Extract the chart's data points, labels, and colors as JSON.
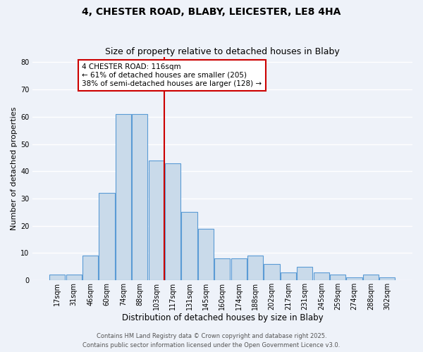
{
  "title1": "4, CHESTER ROAD, BLABY, LEICESTER, LE8 4HA",
  "title2": "Size of property relative to detached houses in Blaby",
  "xlabel": "Distribution of detached houses by size in Blaby",
  "ylabel": "Number of detached properties",
  "bar_labels": [
    "17sqm",
    "31sqm",
    "46sqm",
    "60sqm",
    "74sqm",
    "88sqm",
    "103sqm",
    "117sqm",
    "131sqm",
    "145sqm",
    "160sqm",
    "174sqm",
    "188sqm",
    "202sqm",
    "217sqm",
    "231sqm",
    "245sqm",
    "259sqm",
    "274sqm",
    "288sqm",
    "302sqm"
  ],
  "bar_values": [
    2,
    2,
    9,
    32,
    61,
    61,
    44,
    43,
    25,
    19,
    8,
    8,
    9,
    6,
    3,
    5,
    3,
    2,
    1,
    2,
    1
  ],
  "bar_color": "#c9daea",
  "bar_edge_color": "#5b9bd5",
  "vline_color": "#cc0000",
  "vline_index": 7,
  "annotation_title": "4 CHESTER ROAD: 116sqm",
  "annotation_line1": "← 61% of detached houses are smaller (205)",
  "annotation_line2": "38% of semi-detached houses are larger (128) →",
  "annotation_box_color": "#ffffff",
  "annotation_box_edge": "#cc0000",
  "ylim": [
    0,
    82
  ],
  "yticks": [
    0,
    10,
    20,
    30,
    40,
    50,
    60,
    70,
    80
  ],
  "footer1": "Contains HM Land Registry data © Crown copyright and database right 2025.",
  "footer2": "Contains public sector information licensed under the Open Government Licence v3.0.",
  "background_color": "#eef2f9",
  "grid_color": "#ffffff",
  "title1_fontsize": 10,
  "title2_fontsize": 9,
  "xlabel_fontsize": 8.5,
  "ylabel_fontsize": 8,
  "tick_fontsize": 7,
  "footer_fontsize": 6,
  "ann_fontsize": 7.5
}
